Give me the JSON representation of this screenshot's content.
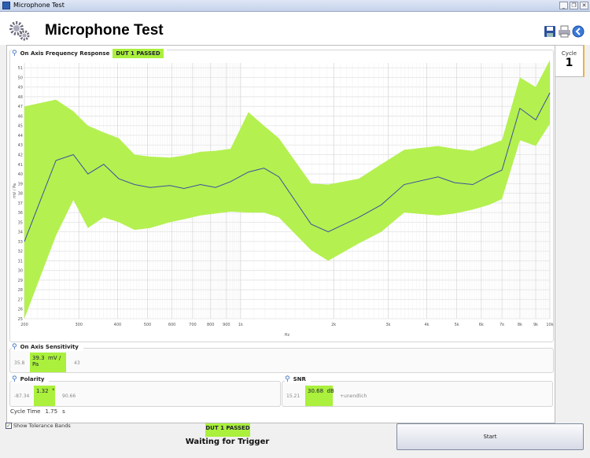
{
  "window": {
    "title": "Microphone Test",
    "buttons": [
      "_",
      "❐",
      "✕"
    ]
  },
  "header": {
    "title": "Microphone Test",
    "icons": [
      "gears-icon",
      "save-icon",
      "print-icon",
      "back-icon"
    ]
  },
  "cycle": {
    "label": "Cycle",
    "value": "1"
  },
  "frequency_response": {
    "label": "On Axis Frequency Response",
    "status": "DUT 1   PASSED"
  },
  "chart_data": {
    "type": "line",
    "xlabel": "Hz",
    "ylabel": "mV / Pa",
    "xscale": "log",
    "xlim": [
      200,
      10000
    ],
    "ylim": [
      25,
      51.5
    ],
    "xticks": [
      200,
      300,
      400,
      500,
      600,
      700,
      800,
      900,
      1000,
      2000,
      3000,
      4000,
      5000,
      6000,
      7000,
      8000,
      9000,
      10000
    ],
    "xticklabels": [
      "200",
      "300",
      "400",
      "500",
      "600",
      "700",
      "800",
      "900",
      "1k",
      "2k",
      "3k",
      "4k",
      "5k",
      "6k",
      "7k",
      "8k",
      "9k",
      "10k"
    ],
    "yticks": [
      25,
      26,
      27,
      28,
      29,
      30,
      31,
      32,
      33,
      34,
      35,
      36,
      37,
      38,
      39,
      40,
      41,
      42,
      43,
      44,
      45,
      46,
      47,
      48,
      49,
      50,
      51
    ],
    "grid": true,
    "band_color": "#b4f050",
    "line_color": "#3b4fa0",
    "x": [
      200,
      253,
      288,
      321,
      361,
      404,
      454,
      510,
      591,
      656,
      742,
      830,
      928,
      1060,
      1190,
      1330,
      1690,
      1920,
      2410,
      2850,
      3380,
      4350,
      4920,
      5630,
      6370,
      7000,
      8000,
      9000,
      10000
    ],
    "series": [
      {
        "role": "measurement",
        "values": [
          33,
          41.4,
          42,
          40,
          41,
          39.5,
          38.9,
          38.6,
          38.8,
          38.5,
          38.9,
          38.6,
          39.2,
          40.2,
          40.6,
          39.7,
          34.8,
          34,
          35.5,
          36.8,
          38.9,
          39.7,
          39.1,
          38.9,
          39.8,
          40.4,
          46.8,
          45.6,
          48.4
        ]
      },
      {
        "role": "tolerance-upper",
        "values": [
          47,
          47.7,
          46.5,
          45,
          44.3,
          43.7,
          42,
          41.8,
          41.7,
          41.9,
          42.3,
          42.4,
          42.6,
          46.4,
          45,
          43.7,
          39,
          38.9,
          39.5,
          41,
          42.5,
          42.9,
          42.6,
          42.4,
          43,
          43.5,
          50,
          49,
          51.8
        ]
      },
      {
        "role": "tolerance-lower",
        "values": [
          25,
          33.6,
          37.3,
          34.4,
          35.5,
          35,
          34.2,
          34.4,
          35,
          35.3,
          35.7,
          35.9,
          36.1,
          36,
          36,
          35.5,
          32.1,
          31,
          32.8,
          34,
          36,
          35.7,
          35.9,
          36.3,
          36.8,
          37.4,
          43.5,
          42.9,
          45.2
        ]
      }
    ]
  },
  "sensitivity": {
    "label": "On Axis Sensitivity",
    "min": "35.8",
    "value": "39.3",
    "unit": "mV / Pa",
    "max": "43"
  },
  "polarity": {
    "label": "Polarity",
    "min": "-87.34",
    "value": "1.32",
    "unit": "°",
    "max": "90.66"
  },
  "snr": {
    "label": "SNR",
    "min": "15.21",
    "value": "30.68",
    "unit": "dB",
    "max": "+unendlich"
  },
  "cycle_time": {
    "label": "Cycle Time",
    "value": "1.75",
    "unit": "s"
  },
  "show_tolerance": {
    "label": "Show Tolerance Bands",
    "checked": true
  },
  "status": {
    "result": "DUT 1   PASSED",
    "message": "Waiting for Trigger"
  },
  "start_button": "Start"
}
